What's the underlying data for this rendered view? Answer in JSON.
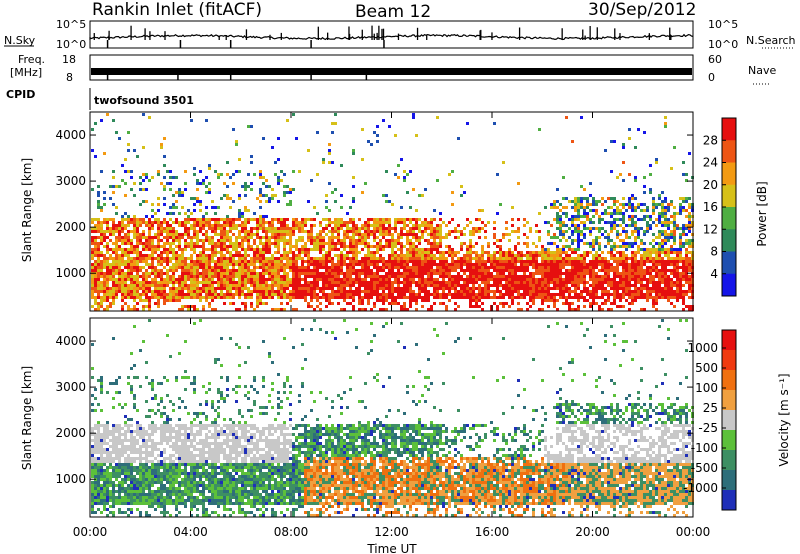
{
  "header": {
    "radar_title": "Rankin Inlet (fitACF)",
    "beam_label": "Beam 12",
    "date_label": "30/Sep/2012"
  },
  "top_panels": {
    "nsky_label": "N.Sky",
    "nsearch_label": "N.Search",
    "nsky_ticks": [
      "10^5",
      "10^0"
    ],
    "nsearch_ticks": [
      "10^5",
      "10^0"
    ],
    "freq_label_line1": "Freq.",
    "freq_label_line2": "[MHz]",
    "freq_ticks": [
      "18",
      "8"
    ],
    "nave_label": "Nave",
    "nave_ticks": [
      "60",
      "0"
    ],
    "cpid_label": "CPID",
    "cpid_value": "twofsound 3501"
  },
  "x_axis": {
    "label": "Time UT",
    "ticks": [
      "00:00",
      "04:00",
      "08:00",
      "12:00",
      "16:00",
      "20:00",
      "00:00"
    ]
  },
  "chart_data": [
    {
      "type": "heatmap",
      "name": "power",
      "ylabel": "Slant Range [km]",
      "xlabel": "Time UT",
      "x_range_hours": [
        0,
        24
      ],
      "ylim": [
        180,
        4500
      ],
      "y_ticks": [
        "1000",
        "2000",
        "3000",
        "4000"
      ],
      "colorbar_label": "Power [dB]",
      "colorbar_ticks": [
        "4",
        "8",
        "12",
        "16",
        "20",
        "24",
        "28"
      ],
      "colorbar_colors": [
        "#1515e8",
        "#1e4fb0",
        "#2f8a5a",
        "#4fae42",
        "#d6c018",
        "#f39a12",
        "#ee5514",
        "#e60f0f"
      ]
    },
    {
      "type": "heatmap",
      "name": "velocity",
      "ylabel": "Slant Range [km]",
      "xlabel": "Time UT",
      "x_range_hours": [
        0,
        24
      ],
      "ylim": [
        180,
        4500
      ],
      "y_ticks": [
        "1000",
        "2000",
        "3000",
        "4000"
      ],
      "colorbar_label": "Velocity [m s⁻¹]",
      "colorbar_ticks": [
        "1000",
        "500",
        "100",
        "25",
        "-25",
        "-100",
        "-500",
        "-1000"
      ],
      "colorbar_colors": [
        "#1f2fb8",
        "#2e6e7a",
        "#3d8f63",
        "#5cc03a",
        "#c8c8c8",
        "#f0a040",
        "#f07010",
        "#f03a10",
        "#e61010"
      ]
    }
  ],
  "colors": {
    "ground_scatter": "#c8c8c8",
    "axis": "#000000"
  }
}
